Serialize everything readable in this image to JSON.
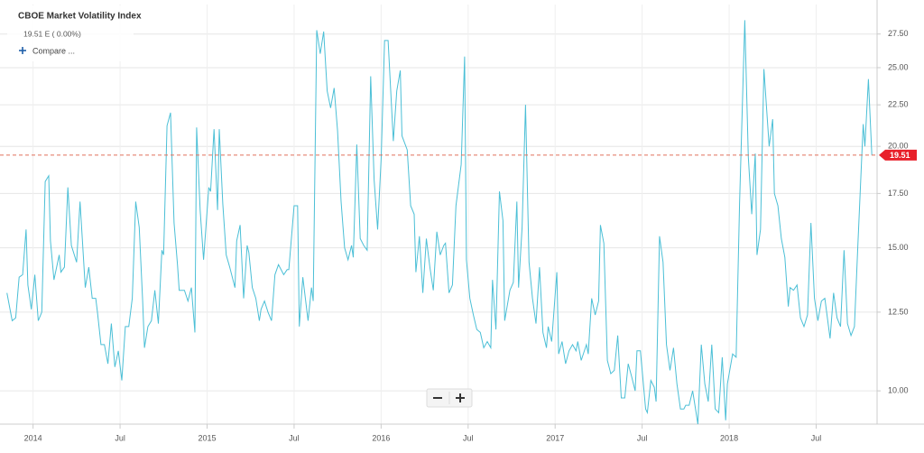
{
  "chart_data": {
    "type": "line",
    "title": "CBOE Market Volatility Index",
    "subtitle": "19.51 E ( 0.00%)",
    "compare_label": "Compare ...",
    "log_scale": true,
    "grid": true,
    "last_price": 19.51,
    "last_price_color": "#e0705c",
    "last_marker_color": "#e8202a",
    "xlim": [
      2013.81,
      2018.85
    ],
    "xticks": [
      2014,
      {
        "value": 2014.5,
        "label": "Jul"
      },
      2015,
      {
        "value": 2015.5,
        "label": "Jul"
      },
      2016,
      {
        "value": 2016.5,
        "label": "Jul"
      },
      2017,
      {
        "value": 2017.5,
        "label": "Jul"
      },
      2018,
      {
        "value": 2018.5,
        "label": "Jul"
      }
    ],
    "ylim": [
      9.1,
      29.9
    ],
    "yticks": [
      {
        "value": 10,
        "label": "10.00"
      },
      {
        "value": 12.5,
        "label": "12.50"
      },
      {
        "value": 15,
        "label": "15.00"
      },
      {
        "value": 17.5,
        "label": "17.50"
      },
      {
        "value": 20,
        "label": "20.00"
      },
      {
        "value": 22.5,
        "label": "22.50"
      },
      {
        "value": 25,
        "label": "25.00"
      },
      {
        "value": 27.5,
        "label": "27.50"
      }
    ],
    "x": [
      2013.85,
      2013.88,
      2013.9,
      2013.92,
      2013.94,
      2013.96,
      2013.97,
      2013.99,
      2014.01,
      2014.03,
      2014.05,
      2014.07,
      2014.09,
      2014.1,
      2014.12,
      2014.15,
      2014.16,
      2014.18,
      2014.2,
      2014.22,
      2014.25,
      2014.27,
      2014.3,
      2014.32,
      2014.34,
      2014.36,
      2014.37,
      2014.39,
      2014.41,
      2014.43,
      2014.45,
      2014.47,
      2014.49,
      2014.51,
      2014.53,
      2014.55,
      2014.57,
      2014.59,
      2014.61,
      2014.63,
      2014.64,
      2014.66,
      2014.68,
      2014.7,
      2014.72,
      2014.74,
      2014.75,
      2014.77,
      2014.79,
      2014.81,
      2014.83,
      2014.84,
      2014.87,
      2014.89,
      2014.91,
      2014.93,
      2014.94,
      2014.96,
      2014.98,
      2015.01,
      2015.02,
      2015.04,
      2015.06,
      2015.07,
      2015.09,
      2015.11,
      2015.13,
      2015.16,
      2015.17,
      2015.19,
      2015.21,
      2015.23,
      2015.24,
      2015.26,
      2015.28,
      2015.3,
      2015.31,
      2015.33,
      2015.35,
      2015.37,
      2015.39,
      2015.41,
      2015.44,
      2015.46,
      2015.47,
      2015.5,
      2015.52,
      2015.53,
      2015.55,
      2015.58,
      2015.6,
      2015.61,
      2015.63,
      2015.65,
      2015.67,
      2015.69,
      2015.71,
      2015.73,
      2015.75,
      2015.77,
      2015.79,
      2015.81,
      2015.83,
      2015.84,
      2015.86,
      2015.88,
      2015.9,
      2015.92,
      2015.94,
      2015.96,
      2015.98,
      2016.0,
      2016.02,
      2016.04,
      2016.06,
      2016.07,
      2016.09,
      2016.11,
      2016.12,
      2016.15,
      2016.17,
      2016.19,
      2016.2,
      2016.22,
      2016.24,
      2016.26,
      2016.28,
      2016.3,
      2016.32,
      2016.34,
      2016.36,
      2016.37,
      2016.39,
      2016.41,
      2016.43,
      2016.46,
      2016.48,
      2016.49,
      2016.51,
      2016.53,
      2016.55,
      2016.57,
      2016.59,
      2016.61,
      2016.63,
      2016.64,
      2016.66,
      2016.68,
      2016.7,
      2016.71,
      2016.74,
      2016.76,
      2016.78,
      2016.79,
      2016.81,
      2016.83,
      2016.85,
      2016.87,
      2016.89,
      2016.91,
      2016.93,
      2016.95,
      2016.96,
      2016.98,
      2017.01,
      2017.02,
      2017.04,
      2017.06,
      2017.08,
      2017.1,
      2017.12,
      2017.13,
      2017.15,
      2017.18,
      2017.19,
      2017.21,
      2017.23,
      2017.25,
      2017.26,
      2017.28,
      2017.3,
      2017.32,
      2017.34,
      2017.36,
      2017.38,
      2017.4,
      2017.42,
      2017.44,
      2017.46,
      2017.47,
      2017.49,
      2017.52,
      2017.53,
      2017.55,
      2017.57,
      2017.58,
      2017.6,
      2017.62,
      2017.64,
      2017.66,
      2017.68,
      2017.7,
      2017.72,
      2017.74,
      2017.75,
      2017.77,
      2017.79,
      2017.8,
      2017.82,
      2017.84,
      2017.86,
      2017.88,
      2017.9,
      2017.92,
      2017.94,
      2017.96,
      2017.98,
      2017.99,
      2018.02,
      2018.04,
      2018.06,
      2018.09,
      2018.11,
      2018.13,
      2018.15,
      2018.16,
      2018.18,
      2018.2,
      2018.23,
      2018.25,
      2018.26,
      2018.28,
      2018.3,
      2018.32,
      2018.34,
      2018.35,
      2018.37,
      2018.39,
      2018.41,
      2018.43,
      2018.45,
      2018.47,
      2018.49,
      2018.51,
      2018.53,
      2018.55,
      2018.58,
      2018.6,
      2018.62,
      2018.64,
      2018.66,
      2018.68,
      2018.7,
      2018.72,
      2018.74,
      2018.77,
      2018.78,
      2018.8,
      2018.82
    ],
    "series": [
      {
        "name": "CBOE Market Volatility Index",
        "color": "#4bbfd6",
        "values": [
          13.2,
          12.2,
          12.3,
          13.8,
          13.9,
          15.8,
          13.5,
          12.6,
          13.9,
          12.2,
          12.5,
          18.1,
          18.4,
          15.3,
          13.7,
          14.7,
          14.0,
          14.2,
          17.8,
          15.1,
          14.4,
          17.1,
          13.4,
          14.2,
          13.0,
          13.0,
          12.5,
          11.4,
          11.4,
          10.8,
          12.1,
          10.7,
          11.2,
          10.3,
          12.0,
          12.0,
          13.0,
          17.1,
          15.9,
          12.9,
          11.3,
          12.0,
          12.2,
          13.3,
          12.1,
          14.9,
          14.7,
          21.2,
          22.0,
          16.1,
          14.3,
          13.3,
          13.3,
          12.9,
          13.4,
          11.8,
          21.1,
          16.7,
          14.5,
          17.8,
          17.6,
          21.0,
          16.7,
          21.0,
          17.0,
          14.7,
          14.2,
          13.4,
          15.3,
          16.0,
          13.0,
          15.1,
          14.8,
          13.4,
          13.0,
          12.2,
          12.6,
          12.9,
          12.5,
          12.2,
          13.9,
          14.3,
          13.9,
          14.1,
          14.1,
          16.9,
          16.9,
          12.0,
          13.8,
          12.2,
          13.4,
          12.9,
          27.8,
          26.0,
          27.7,
          23.4,
          22.3,
          23.6,
          20.9,
          17.1,
          15.0,
          14.5,
          15.1,
          14.6,
          20.1,
          15.4,
          15.1,
          14.9,
          24.4,
          18.2,
          15.8,
          19.3,
          27.0,
          27.0,
          22.4,
          20.3,
          23.4,
          24.8,
          20.6,
          19.8,
          16.9,
          16.5,
          14.0,
          15.5,
          13.2,
          15.4,
          14.2,
          13.3,
          15.7,
          14.7,
          15.1,
          15.2,
          13.2,
          13.5,
          16.9,
          19.0,
          25.8,
          14.5,
          13.0,
          12.4,
          11.9,
          11.8,
          11.3,
          11.5,
          11.3,
          13.7,
          11.9,
          17.6,
          16.2,
          12.2,
          13.3,
          13.6,
          17.1,
          13.4,
          15.9,
          22.5,
          14.4,
          13.0,
          12.1,
          14.2,
          11.8,
          11.3,
          12.0,
          11.5,
          14.0,
          11.1,
          11.5,
          10.8,
          11.2,
          11.4,
          11.2,
          11.5,
          10.9,
          11.4,
          11.1,
          13.0,
          12.4,
          12.9,
          16.0,
          15.2,
          10.9,
          10.5,
          10.6,
          11.7,
          9.8,
          9.8,
          10.8,
          10.4,
          10.0,
          11.2,
          11.2,
          9.5,
          9.4,
          10.3,
          10.1,
          9.7,
          15.5,
          14.4,
          11.4,
          10.6,
          11.3,
          10.2,
          9.5,
          9.5,
          9.6,
          9.6,
          10.0,
          9.7,
          9.1,
          11.4,
          10.2,
          9.7,
          11.4,
          9.5,
          9.4,
          11.0,
          9.2,
          10.2,
          11.1,
          11.0,
          17.0,
          28.6,
          19.4,
          16.5,
          19.6,
          14.7,
          15.8,
          24.9,
          20.0,
          21.6,
          17.5,
          16.9,
          15.4,
          14.6,
          12.7,
          13.4,
          13.3,
          13.5,
          12.3,
          12.0,
          12.4,
          16.1,
          13.0,
          12.2,
          12.9,
          13.0,
          11.6,
          13.2,
          12.3,
          12.0,
          14.9,
          12.1,
          11.7,
          12.0,
          15.2,
          21.3,
          20.0,
          24.2,
          19.5
        ]
      }
    ]
  }
}
